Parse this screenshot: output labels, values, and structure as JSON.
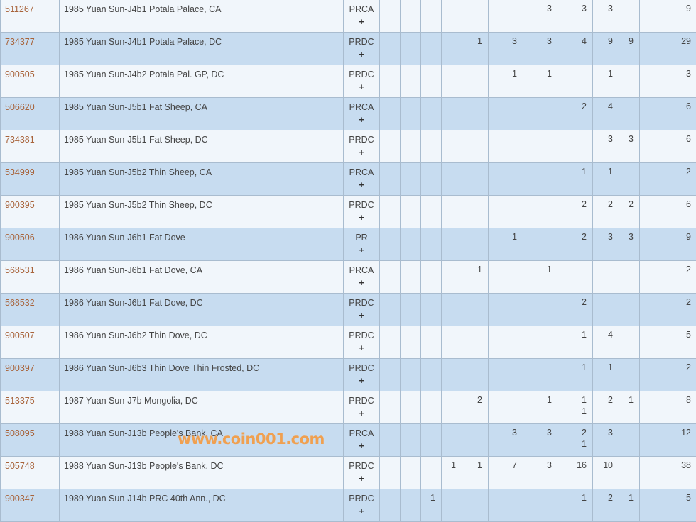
{
  "colors": {
    "row_odd": "#f1f6fb",
    "row_even": "#c7dcf0",
    "link": "#a8633a",
    "border": "#a9bccf",
    "watermark": "#f0a050"
  },
  "plus_label": "+",
  "watermark": "www.coin001.com",
  "rows": [
    {
      "id": "511267",
      "desc": "1985 Yuan Sun-J4b1 Potala Palace, CA",
      "des": "PRCA",
      "grades": [
        "",
        "",
        "",
        "",
        "",
        "",
        "3",
        "3",
        "3",
        "",
        ""
      ],
      "total": "9"
    },
    {
      "id": "734377",
      "desc": "1985 Yuan Sun-J4b1 Potala Palace, DC",
      "des": "PRDC",
      "grades": [
        "",
        "",
        "",
        "",
        "1",
        "3",
        "3",
        "4",
        "9",
        "9",
        ""
      ],
      "total": "29"
    },
    {
      "id": "900505",
      "desc": "1985 Yuan Sun-J4b2 Potala Pal. GP, DC",
      "des": "PRDC",
      "grades": [
        "",
        "",
        "",
        "",
        "",
        "1",
        "1",
        "",
        "1",
        "",
        ""
      ],
      "total": "3"
    },
    {
      "id": "506620",
      "desc": "1985 Yuan Sun-J5b1 Fat Sheep, CA",
      "des": "PRCA",
      "grades": [
        "",
        "",
        "",
        "",
        "",
        "",
        "",
        "2",
        "4",
        "",
        ""
      ],
      "total": "6"
    },
    {
      "id": "734381",
      "desc": "1985 Yuan Sun-J5b1 Fat Sheep, DC",
      "des": "PRDC",
      "grades": [
        "",
        "",
        "",
        "",
        "",
        "",
        "",
        "",
        "3",
        "3",
        ""
      ],
      "total": "6"
    },
    {
      "id": "534999",
      "desc": "1985 Yuan Sun-J5b2 Thin Sheep, CA",
      "des": "PRCA",
      "grades": [
        "",
        "",
        "",
        "",
        "",
        "",
        "",
        "1",
        "1",
        "",
        ""
      ],
      "total": "2"
    },
    {
      "id": "900395",
      "desc": "1985 Yuan Sun-J5b2 Thin Sheep, DC",
      "des": "PRDC",
      "grades": [
        "",
        "",
        "",
        "",
        "",
        "",
        "",
        "2",
        "2",
        "2",
        ""
      ],
      "total": "6"
    },
    {
      "id": "900506",
      "desc": "1986 Yuan Sun-J6b1 Fat Dove",
      "des": "PR",
      "grades": [
        "",
        "",
        "",
        "",
        "",
        "1",
        "",
        "2",
        "3",
        "3",
        ""
      ],
      "total": "9"
    },
    {
      "id": "568531",
      "desc": "1986 Yuan Sun-J6b1 Fat Dove, CA",
      "des": "PRCA",
      "grades": [
        "",
        "",
        "",
        "",
        "1",
        "",
        "1",
        "",
        "",
        "",
        ""
      ],
      "total": "2"
    },
    {
      "id": "568532",
      "desc": "1986 Yuan Sun-J6b1 Fat Dove, DC",
      "des": "PRDC",
      "grades": [
        "",
        "",
        "",
        "",
        "",
        "",
        "",
        "2",
        "",
        "",
        ""
      ],
      "total": "2"
    },
    {
      "id": "900507",
      "desc": "1986 Yuan Sun-J6b2 Thin Dove, DC",
      "des": "PRDC",
      "grades": [
        "",
        "",
        "",
        "",
        "",
        "",
        "",
        "1",
        "4",
        "",
        ""
      ],
      "total": "5"
    },
    {
      "id": "900397",
      "desc": "1986 Yuan Sun-J6b3 Thin Dove Thin Frosted, DC",
      "des": "PRDC",
      "grades": [
        "",
        "",
        "",
        "",
        "",
        "",
        "",
        "1",
        "1",
        "",
        ""
      ],
      "total": "2"
    },
    {
      "id": "513375",
      "desc": "1987 Yuan Sun-J7b Mongolia, DC",
      "des": "PRDC",
      "grades": [
        "",
        "",
        "",
        "",
        "2",
        "",
        "1",
        [
          "1",
          "1"
        ],
        "2",
        "1",
        ""
      ],
      "total": "8"
    },
    {
      "id": "508095",
      "desc": "1988 Yuan Sun-J13b People's Bank, CA",
      "des": "PRCA",
      "grades": [
        "",
        "",
        "",
        "",
        "",
        "3",
        "3",
        [
          "2",
          "1"
        ],
        "3",
        "",
        ""
      ],
      "total": "12"
    },
    {
      "id": "505748",
      "desc": "1988 Yuan Sun-J13b People's Bank, DC",
      "des": "PRDC",
      "grades": [
        "",
        "",
        "",
        "1",
        "1",
        "7",
        "3",
        "16",
        "10",
        "",
        ""
      ],
      "total": "38"
    },
    {
      "id": "900347",
      "desc": "1989 Yuan Sun-J14b PRC 40th Ann., DC",
      "des": "PRDC",
      "grades": [
        "",
        "",
        "1",
        "",
        "",
        "",
        "",
        "1",
        "2",
        "1",
        ""
      ],
      "total": "5"
    }
  ]
}
